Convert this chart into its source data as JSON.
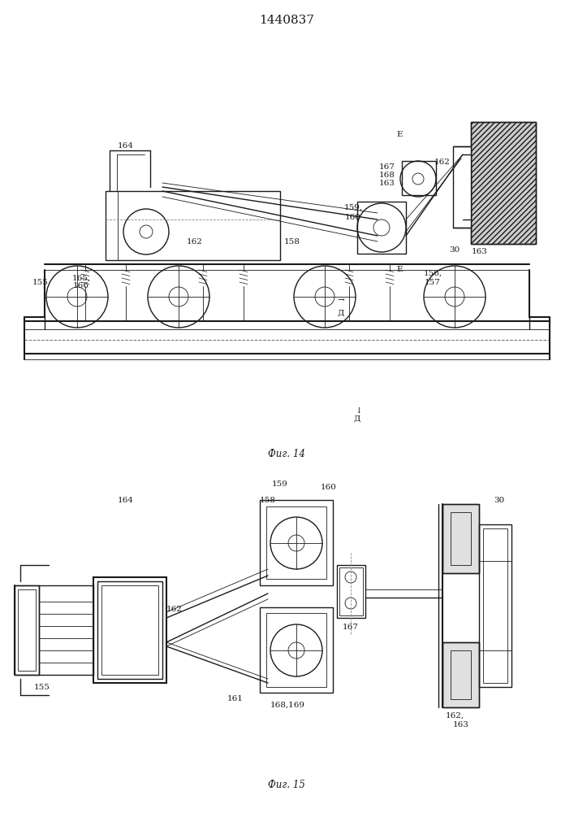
{
  "title": "1440837",
  "fig14_label": "Фиг. 14",
  "fig15_label": "Фиг. 15",
  "bg_color": "#ffffff",
  "line_color": "#1a1a1a",
  "hatch_color": "#555555",
  "title_fontsize": 11,
  "label_fontsize": 8.5,
  "annotation_fontsize": 7.5
}
